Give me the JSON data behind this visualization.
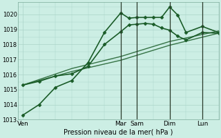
{
  "xlabel": "Pression niveau de la mer( hPa )",
  "background_color": "#cceee4",
  "grid_color": "#aad4c8",
  "line_color": "#1a5c28",
  "vline_color": "#2a3a2a",
  "ylim": [
    1013,
    1020.8
  ],
  "yticks": [
    1013,
    1014,
    1015,
    1016,
    1017,
    1018,
    1019,
    1020
  ],
  "x_tick_labels": [
    "Ven",
    "Mar",
    "Sam",
    "Dim",
    "Lun"
  ],
  "x_tick_positions": [
    0,
    6,
    7,
    9,
    11
  ],
  "x_vline_positions": [
    6,
    7,
    9,
    11
  ],
  "xlim": [
    -0.3,
    12.0
  ],
  "series": [
    {
      "x": [
        0,
        1,
        2,
        3,
        4,
        5,
        6,
        6.5,
        7,
        7.5,
        8,
        8.5,
        9,
        9.5,
        10,
        11,
        12
      ],
      "y": [
        1013.3,
        1014.0,
        1015.15,
        1015.6,
        1016.8,
        1018.8,
        1020.1,
        1019.75,
        1019.8,
        1019.8,
        1019.8,
        1019.8,
        1020.5,
        1019.95,
        1018.8,
        1019.2,
        1018.8
      ],
      "marker": "D",
      "markersize": 2.5,
      "linewidth": 1.2,
      "linestyle": "-"
    },
    {
      "x": [
        0,
        1,
        2,
        3,
        4,
        5,
        6,
        6.5,
        7,
        7.5,
        8,
        8.5,
        9,
        9.5,
        10,
        11,
        12
      ],
      "y": [
        1015.3,
        1015.55,
        1015.9,
        1016.05,
        1016.55,
        1018.0,
        1018.85,
        1019.3,
        1019.35,
        1019.4,
        1019.35,
        1019.1,
        1018.95,
        1018.55,
        1018.3,
        1018.8,
        1018.75
      ],
      "marker": "D",
      "markersize": 2.5,
      "linewidth": 1.2,
      "linestyle": "-"
    },
    {
      "x": [
        0,
        3,
        6,
        9,
        12
      ],
      "y": [
        1015.3,
        1016.2,
        1016.95,
        1017.95,
        1018.75
      ],
      "marker": null,
      "markersize": 0,
      "linewidth": 1.0,
      "linestyle": "-"
    },
    {
      "x": [
        0,
        3,
        6,
        9,
        12
      ],
      "y": [
        1015.3,
        1016.4,
        1017.2,
        1018.2,
        1018.9
      ],
      "marker": null,
      "markersize": 0,
      "linewidth": 1.0,
      "linestyle": "-"
    }
  ]
}
